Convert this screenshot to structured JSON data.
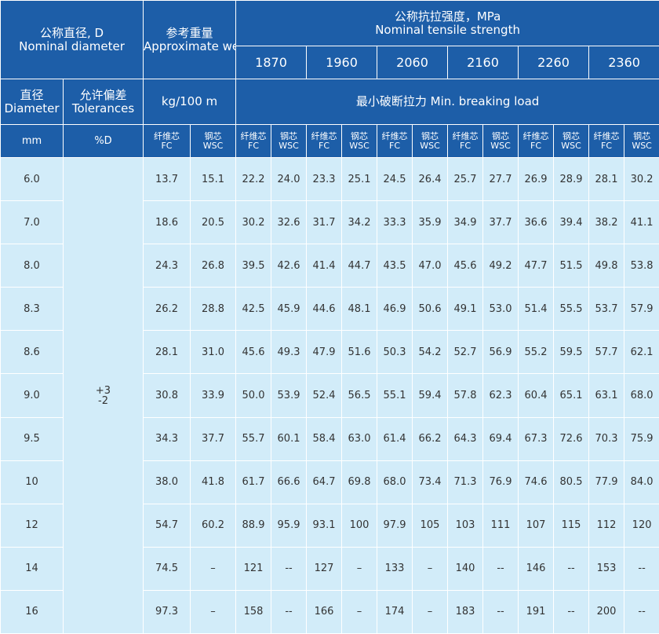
{
  "header": {
    "diameter_group": {
      "zh": "公称直径, D",
      "en": "Nominal diameter"
    },
    "weight_group": {
      "zh": "参考重量",
      "en": "Approximate weight"
    },
    "strength_group": {
      "zh": "公称抗拉强度，MPa",
      "en": "Nominal tensile strength"
    },
    "grades": [
      "1870",
      "1960",
      "2060",
      "2160",
      "2260",
      "2360"
    ],
    "diameter": {
      "zh": "直径",
      "en": "Diameter"
    },
    "tolerance": {
      "zh": "允许偏差",
      "en": "Tolerances"
    },
    "weight_unit": "kg/100 m",
    "load": "最小破断拉力  Min. breaking load",
    "diameter_unit": "mm",
    "tolerance_unit": "%D",
    "fc": {
      "zh": "纤维芯",
      "en": "FC"
    },
    "wsc": {
      "zh": "钢芯",
      "en": "WSC"
    }
  },
  "table": {
    "tolerance": {
      "plus": "+3",
      "minus": "-2"
    },
    "rows": [
      [
        "6.0",
        "13.7",
        "15.1",
        "22.2",
        "24.0",
        "23.3",
        "25.1",
        "24.5",
        "26.4",
        "25.7",
        "27.7",
        "26.9",
        "28.9",
        "28.1",
        "30.2"
      ],
      [
        "7.0",
        "18.6",
        "20.5",
        "30.2",
        "32.6",
        "31.7",
        "34.2",
        "33.3",
        "35.9",
        "34.9",
        "37.7",
        "36.6",
        "39.4",
        "38.2",
        "41.1"
      ],
      [
        "8.0",
        "24.3",
        "26.8",
        "39.5",
        "42.6",
        "41.4",
        "44.7",
        "43.5",
        "47.0",
        "45.6",
        "49.2",
        "47.7",
        "51.5",
        "49.8",
        "53.8"
      ],
      [
        "8.3",
        "26.2",
        "28.8",
        "42.5",
        "45.9",
        "44.6",
        "48.1",
        "46.9",
        "50.6",
        "49.1",
        "53.0",
        "51.4",
        "55.5",
        "53.7",
        "57.9"
      ],
      [
        "8.6",
        "28.1",
        "31.0",
        "45.6",
        "49.3",
        "47.9",
        "51.6",
        "50.3",
        "54.2",
        "52.7",
        "56.9",
        "55.2",
        "59.5",
        "57.7",
        "62.1"
      ],
      [
        "9.0",
        "30.8",
        "33.9",
        "50.0",
        "53.9",
        "52.4",
        "56.5",
        "55.1",
        "59.4",
        "57.8",
        "62.3",
        "60.4",
        "65.1",
        "63.1",
        "68.0"
      ],
      [
        "9.5",
        "34.3",
        "37.7",
        "55.7",
        "60.1",
        "58.4",
        "63.0",
        "61.4",
        "66.2",
        "64.3",
        "69.4",
        "67.3",
        "72.6",
        "70.3",
        "75.9"
      ],
      [
        "10",
        "38.0",
        "41.8",
        "61.7",
        "66.6",
        "64.7",
        "69.8",
        "68.0",
        "73.4",
        "71.3",
        "76.9",
        "74.6",
        "80.5",
        "77.9",
        "84.0"
      ],
      [
        "12",
        "54.7",
        "60.2",
        "88.9",
        "95.9",
        "93.1",
        "100",
        "97.9",
        "105",
        "103",
        "111",
        "107",
        "115",
        "112",
        "120"
      ],
      [
        "14",
        "74.5",
        "–",
        "121",
        "--",
        "127",
        "–",
        "133",
        "–",
        "140",
        "--",
        "146",
        "--",
        "153",
        "--"
      ],
      [
        "16",
        "97.3",
        "–",
        "158",
        "--",
        "166",
        "–",
        "174",
        "–",
        "183",
        "--",
        "191",
        "--",
        "200",
        "--"
      ]
    ]
  }
}
